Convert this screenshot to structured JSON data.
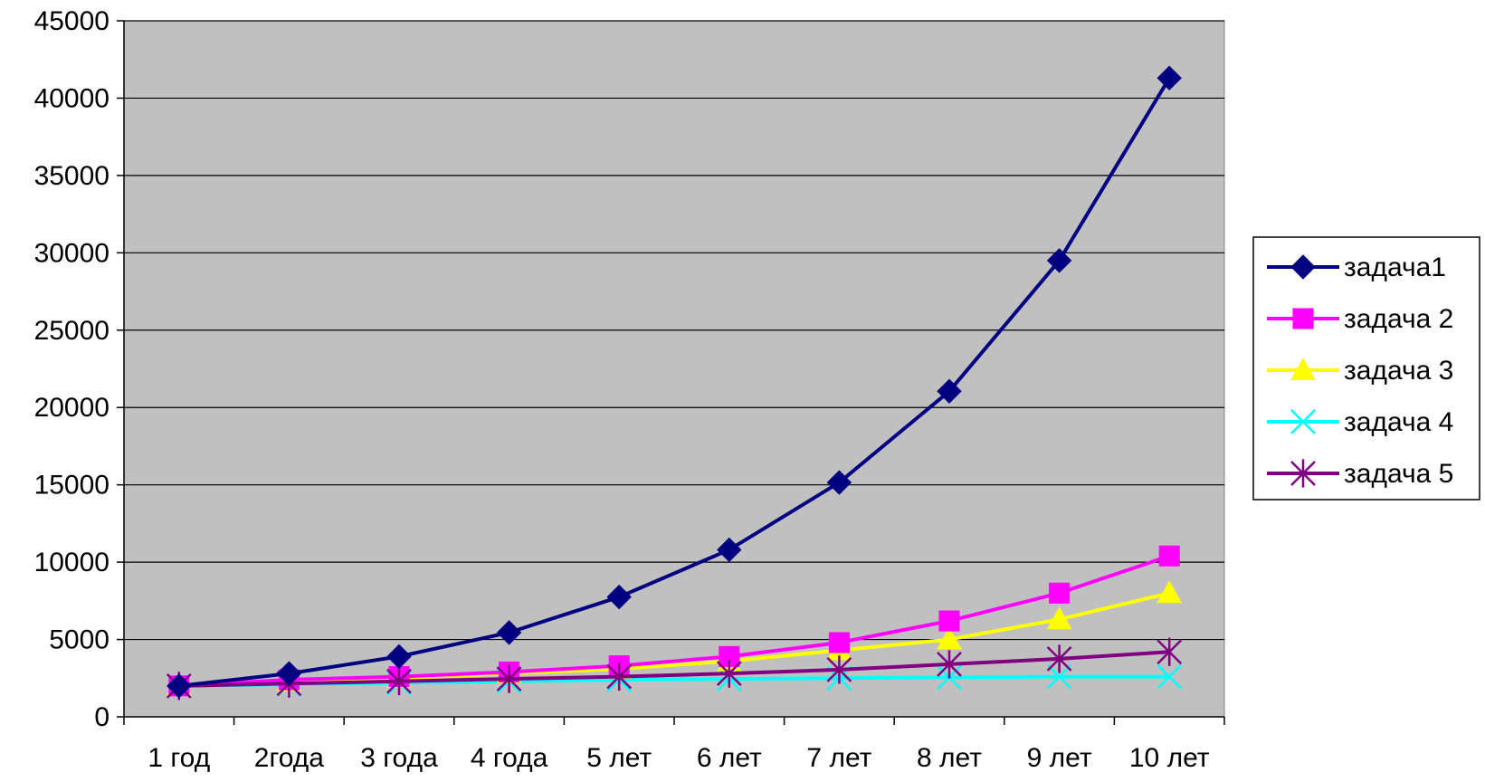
{
  "chart_data": {
    "type": "line",
    "title": "",
    "xlabel": "",
    "ylabel": "",
    "categories": [
      "1 год",
      "2года",
      "3 года",
      "4 года",
      "5 лет",
      "6 лет",
      "7 лет",
      "8 лет",
      "9 лет",
      "10 лет"
    ],
    "ylim": [
      0,
      45000
    ],
    "yticks": [
      0,
      5000,
      10000,
      15000,
      20000,
      25000,
      30000,
      35000,
      40000,
      45000
    ],
    "grid": true,
    "legend_position": "right",
    "plot_background": "#c0c0c0",
    "series": [
      {
        "name": "задача1",
        "color": "#000080",
        "marker": "diamond",
        "values": [
          2000,
          2800,
          3900,
          5450,
          7750,
          10800,
          15150,
          21050,
          29500,
          41300
        ]
      },
      {
        "name": "задача 2",
        "color": "#ff00ff",
        "marker": "square",
        "values": [
          2000,
          2400,
          2600,
          2900,
          3300,
          3900,
          4800,
          6200,
          8000,
          10400
        ]
      },
      {
        "name": "задача 3",
        "color": "#ffff00",
        "marker": "triangle",
        "values": [
          2000,
          2300,
          2500,
          2800,
          3100,
          3600,
          4300,
          5000,
          6300,
          8000
        ]
      },
      {
        "name": "задача 4",
        "color": "#00ffff",
        "marker": "x",
        "values": [
          2000,
          2100,
          2200,
          2300,
          2400,
          2450,
          2500,
          2550,
          2600,
          2600
        ]
      },
      {
        "name": "задача 5",
        "color": "#800080",
        "marker": "star",
        "values": [
          2000,
          2150,
          2300,
          2450,
          2600,
          2800,
          3050,
          3400,
          3750,
          4200
        ]
      }
    ]
  }
}
